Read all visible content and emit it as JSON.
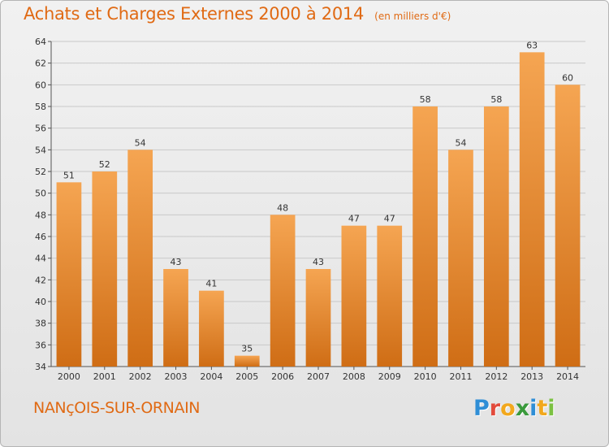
{
  "header": {
    "title": "Achats et Charges Externes 2000 à 2014",
    "unit": "(en milliers d'€)"
  },
  "footer": {
    "commune": "NANçOIS-SUR-ORNAIN",
    "logo_letters": [
      {
        "char": "P",
        "color": "#2f8ed6"
      },
      {
        "char": "r",
        "color": "#e24b3c"
      },
      {
        "char": "o",
        "color": "#f2a81d"
      },
      {
        "char": "x",
        "color": "#3a9a3c"
      },
      {
        "char": "i",
        "color": "#2f8ed6"
      },
      {
        "char": "t",
        "color": "#f2a81d"
      },
      {
        "char": "i",
        "color": "#7cc142"
      }
    ]
  },
  "colors": {
    "accent": "#e06a14",
    "bar_light": "#f5a552",
    "bar_dark": "#cf6d15",
    "grid": "#c9c9c9"
  },
  "chart_data": {
    "type": "bar",
    "categories": [
      "2000",
      "2001",
      "2002",
      "2003",
      "2004",
      "2005",
      "2006",
      "2007",
      "2008",
      "2009",
      "2010",
      "2011",
      "2012",
      "2013",
      "2014"
    ],
    "values": [
      51,
      52,
      54,
      43,
      41,
      35,
      48,
      43,
      47,
      47,
      58,
      54,
      58,
      63,
      60
    ],
    "data_labels": [
      "51",
      "52",
      "54",
      "43",
      "41",
      "35",
      "48",
      "43",
      "47",
      "47",
      "58",
      "54",
      "58",
      "63",
      "60"
    ],
    "ylim": [
      34,
      64
    ],
    "yticks": [
      34,
      36,
      38,
      40,
      42,
      44,
      46,
      48,
      50,
      52,
      54,
      56,
      58,
      60,
      62,
      64
    ],
    "grid": true,
    "xlabel": "",
    "ylabel": ""
  }
}
